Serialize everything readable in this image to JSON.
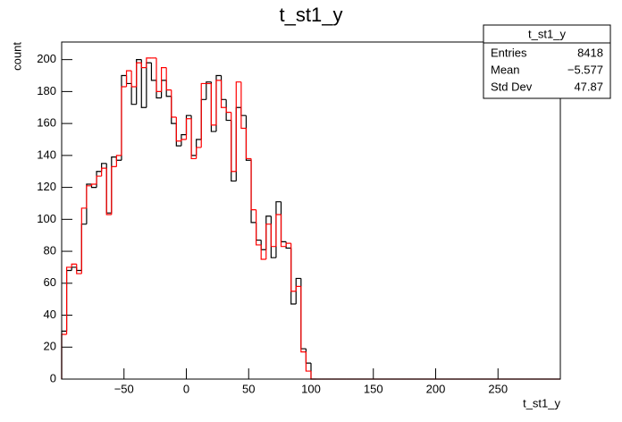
{
  "chart_data": {
    "type": "histogram",
    "title": "t_st1_y",
    "x_label": "t_st1_y",
    "y_label": "count",
    "bins": [
      -100,
      -96,
      -92,
      -88,
      -84,
      -80,
      -76,
      -72,
      -68,
      -64,
      -60,
      -56,
      -52,
      -48,
      -44,
      -40,
      -36,
      -32,
      -28,
      -24,
      -20,
      -16,
      -12,
      -8,
      -4,
      0,
      4,
      8,
      12,
      16,
      20,
      24,
      28,
      32,
      36,
      40,
      44,
      48,
      52,
      56,
      60,
      64,
      68,
      72,
      76,
      80,
      84,
      88,
      92,
      96,
      100,
      104,
      108,
      112,
      116,
      120,
      124,
      128,
      132,
      136,
      140,
      144,
      148,
      152,
      156,
      160,
      164,
      168,
      172,
      176,
      180,
      184,
      188,
      192,
      196,
      200,
      204,
      208,
      212,
      216,
      220,
      224,
      228,
      232,
      236,
      240,
      244,
      248,
      252,
      256,
      260,
      264,
      268,
      272,
      276,
      280,
      284,
      288,
      292,
      296,
      300
    ],
    "series": [
      {
        "color": "#000000",
        "values": [
          30,
          68,
          70,
          68,
          97,
          122,
          120,
          130,
          135,
          104,
          139,
          137,
          190,
          185,
          172,
          200,
          170,
          198,
          187,
          176,
          187,
          177,
          160,
          146,
          153,
          165,
          140,
          150,
          175,
          186,
          155,
          190,
          175,
          162,
          124,
          170,
          165,
          137,
          98,
          87,
          81,
          102,
          76,
          111,
          86,
          82,
          47,
          63,
          19,
          10,
          0,
          0,
          0,
          0,
          0,
          0,
          0,
          0,
          0,
          0,
          0,
          0,
          0,
          0,
          0,
          0,
          0,
          0,
          0,
          0,
          0,
          0,
          0,
          0,
          0,
          0,
          0,
          0,
          0,
          0,
          0,
          0,
          0,
          0,
          0,
          0,
          0,
          0,
          0,
          0,
          0,
          0,
          0,
          0,
          0,
          0,
          0,
          0,
          0,
          0
        ]
      },
      {
        "color": "#ff0000",
        "values": [
          28,
          70,
          72,
          66,
          107,
          121,
          122,
          127,
          132,
          103,
          133,
          140,
          183,
          193,
          183,
          198,
          195,
          201,
          201,
          180,
          195,
          181,
          164,
          149,
          150,
          163,
          138,
          145,
          185,
          185,
          159,
          187,
          170,
          167,
          130,
          186,
          157,
          138,
          106,
          84,
          75,
          97,
          83,
          103,
          83,
          85,
          55,
          58,
          17,
          5,
          0,
          0,
          0,
          0,
          0,
          0,
          0,
          0,
          0,
          0,
          0,
          0,
          0,
          0,
          0,
          0,
          0,
          0,
          0,
          0,
          0,
          0,
          0,
          0,
          0,
          0,
          0,
          0,
          0,
          0,
          0,
          0,
          0,
          0,
          0,
          0,
          0,
          0,
          0,
          0,
          0,
          0,
          0,
          0,
          0,
          0,
          0,
          0,
          0,
          0
        ]
      }
    ],
    "xlim": [
      -100,
      300
    ],
    "ylim": [
      0,
      211
    ],
    "xticks": [
      {
        "value": -50,
        "label": "−50"
      },
      0,
      50,
      100,
      150,
      200,
      250
    ],
    "yticks": [
      0,
      20,
      40,
      60,
      80,
      100,
      120,
      140,
      160,
      180,
      200
    ],
    "stats": {
      "title": "t_st1_y",
      "rows": [
        [
          "Entries",
          "8418"
        ],
        [
          "Mean",
          "−5.577"
        ],
        [
          "Std Dev",
          "47.87"
        ]
      ]
    }
  }
}
